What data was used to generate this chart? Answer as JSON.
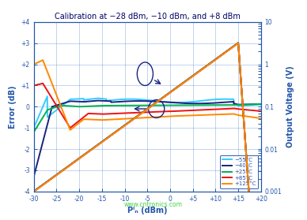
{
  "title": "Calibration at −28 dBm, −10 dBm, and +8 dBm",
  "xlabel": "Pᴵₙ (dBm)",
  "ylabel_left": "Error (dB)",
  "ylabel_right": "Output Voltage (V)",
  "x_min": -30,
  "x_max": 20,
  "y_left_min": -4,
  "y_left_max": 4,
  "background_color": "#ffffff",
  "grid_color": "#5588cc",
  "title_color": "#000066",
  "axis_color": "#2255aa",
  "temperatures": [
    "−55°C",
    "−40°C",
    "+25°C",
    "+85°C",
    "+125°C"
  ],
  "colors": [
    "#33ccff",
    "#1a237e",
    "#00b050",
    "#ee1111",
    "#ff8800"
  ],
  "watermark": "www.cntronics.com",
  "watermark_color": "#22cc22",
  "x_ticks": [
    -30,
    -25,
    -20,
    -15,
    -10,
    -5,
    0,
    5,
    10,
    15,
    20
  ],
  "x_labels": [
    "-30",
    "-25",
    "-20",
    "-15",
    "-10",
    "-5",
    "0",
    "+5",
    "+10",
    "+15",
    "+20"
  ],
  "y_ticks_left": [
    -4,
    -3,
    -2,
    -1,
    0,
    1,
    2,
    3,
    4
  ],
  "y_labels_left": [
    "-4",
    "-3",
    "-2",
    "-1",
    "0",
    "+1",
    "+2",
    "+3",
    "+4"
  ],
  "y_ticks_right": [
    0.001,
    0.01,
    0.1,
    1,
    10
  ],
  "y_labels_right": [
    "0.001",
    "0.01",
    "0.1",
    "1",
    "10"
  ]
}
